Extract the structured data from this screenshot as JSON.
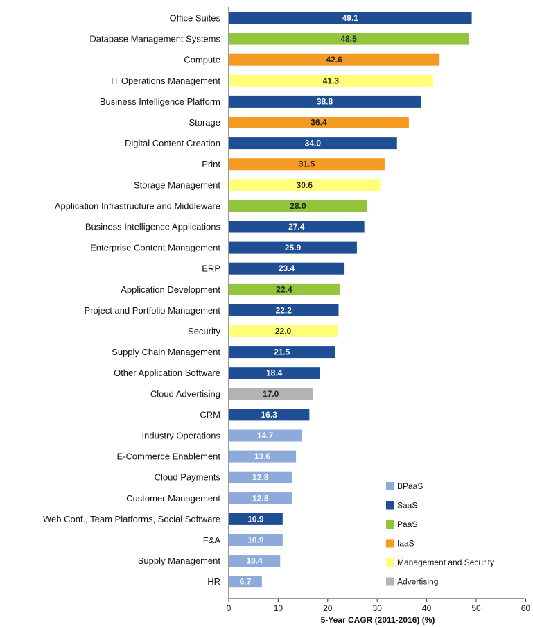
{
  "chart_data": {
    "type": "bar",
    "orientation": "horizontal",
    "xlabel": "5-Year CAGR (2011-2016)  (%)",
    "xlim": [
      0,
      60
    ],
    "xticks": [
      "0",
      "10",
      "20",
      "30",
      "40",
      "50",
      "60"
    ],
    "grid": false,
    "legend_position": "bottom-right",
    "legend": [
      {
        "name": "BPaaS",
        "color": "#8eaadb"
      },
      {
        "name": "SaaS",
        "color": "#1f4e95"
      },
      {
        "name": "PaaS",
        "color": "#92c43c"
      },
      {
        "name": "IaaS",
        "color": "#f59a23"
      },
      {
        "name": "Management and Security",
        "color": "#ffff7a"
      },
      {
        "name": "Advertising",
        "color": "#b3b3b3"
      }
    ],
    "categories": [
      "Office Suites",
      "Database Management Systems",
      "Compute",
      "IT Operations Management",
      "Business Intelligence Platform",
      "Storage",
      "Digital Content Creation",
      "Print",
      "Storage Management",
      "Application Infrastructure and Middleware",
      "Business Intelligence Applications",
      "Enterprise Content Management",
      "ERP",
      "Application Development",
      "Project and Portfolio Management",
      "Security",
      "Supply Chain Management",
      "Other Application Software",
      "Cloud Advertising",
      "CRM",
      "Industry Operations",
      "E-Commerce Enablement",
      "Cloud Payments",
      "Customer Management",
      "Web Conf., Team Platforms, Social Software",
      "F&A",
      "Supply Management",
      "HR"
    ],
    "values": [
      49.1,
      48.5,
      42.6,
      41.3,
      38.8,
      36.4,
      34.0,
      31.5,
      30.6,
      28.0,
      27.4,
      25.9,
      23.4,
      22.4,
      22.2,
      22.0,
      21.5,
      18.4,
      17.0,
      16.3,
      14.7,
      13.6,
      12.8,
      12.8,
      10.9,
      10.9,
      10.4,
      6.7
    ],
    "value_labels": [
      "49.1",
      "48.5",
      "42.6",
      "41.3",
      "38.8",
      "36.4",
      "34.0",
      "31.5",
      "30.6",
      "28.0",
      "27.4",
      "25.9",
      "23.4",
      "22.4",
      "22.2",
      "22.0",
      "21.5",
      "18.4",
      "17.0",
      "16.3",
      "14.7",
      "13.6",
      "12.8",
      "12.8",
      "10.9",
      "10.9",
      "10.4",
      "6.7"
    ],
    "groups": [
      "SaaS",
      "PaaS",
      "IaaS",
      "Management and Security",
      "SaaS",
      "IaaS",
      "SaaS",
      "IaaS",
      "Management and Security",
      "PaaS",
      "SaaS",
      "SaaS",
      "SaaS",
      "PaaS",
      "SaaS",
      "Management and Security",
      "SaaS",
      "SaaS",
      "Advertising",
      "SaaS",
      "BPaaS",
      "BPaaS",
      "BPaaS",
      "BPaaS",
      "SaaS",
      "BPaaS",
      "BPaaS",
      "BPaaS"
    ]
  }
}
